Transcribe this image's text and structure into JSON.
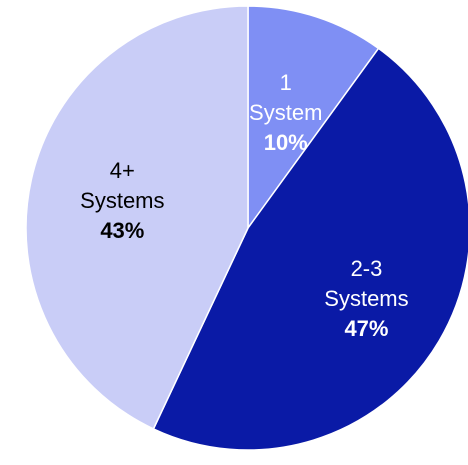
{
  "chart_data": {
    "type": "pie",
    "title": "",
    "legend": "none",
    "start": "top",
    "direction": "clockwise",
    "slices": [
      {
        "line1": "1",
        "line2": "System",
        "pct_label": "10%",
        "value": 10,
        "color": "#7f8ff4",
        "text_color": "#ffffff"
      },
      {
        "line1": "2-3",
        "line2": "Systems",
        "pct_label": "47%",
        "value": 47,
        "color": "#0a1aa6",
        "text_color": "#ffffff"
      },
      {
        "line1": "4+",
        "line2": "Systems",
        "pct_label": "43%",
        "value": 43,
        "color": "#c9cdf7",
        "text_color": "#000000"
      }
    ]
  }
}
